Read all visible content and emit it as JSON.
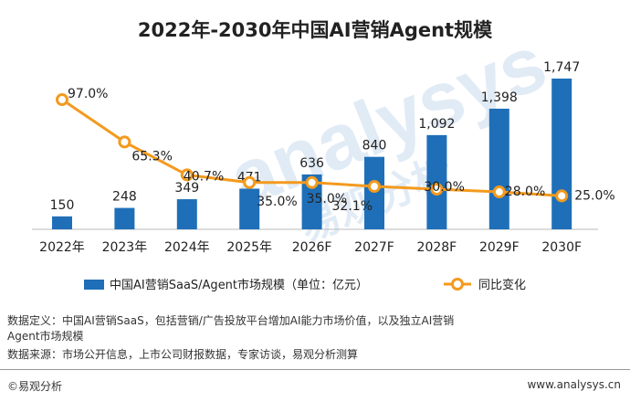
{
  "chart_data": {
    "type": "bar",
    "title": "2022年-2030年中国AI营销Agent规模",
    "categories": [
      "2022年",
      "2023年",
      "2024年",
      "2025年",
      "2026F",
      "2027F",
      "2028F",
      "2029F",
      "2030F"
    ],
    "series": [
      {
        "name": "中国AI营销SaaS/Agent市场规模（单位：亿元）",
        "type": "bar",
        "axis": "left",
        "values": [
          150,
          248,
          349,
          471,
          636,
          840,
          1092,
          1398,
          1747
        ],
        "labels": [
          "150",
          "248",
          "349",
          "471",
          "636",
          "840",
          "1,092",
          "1,398",
          "1,747"
        ],
        "color": "#1f6fb8"
      },
      {
        "name": "同比变化",
        "type": "line",
        "axis": "right",
        "values": [
          97.0,
          65.3,
          40.7,
          35.0,
          35.0,
          32.1,
          30.0,
          28.0,
          25.0
        ],
        "labels": [
          "97.0%",
          "65.3%",
          "40.7%",
          "35.0%",
          "35.0%",
          "32.1%",
          "30.0%",
          "28.0%",
          "25.0%"
        ],
        "color": "#f39a1e"
      }
    ],
    "ylim_left": [
      0,
      1800
    ],
    "ylim_right": [
      0,
      110
    ],
    "grid": false,
    "legend_position": "bottom",
    "watermark": "analysys 易观分析"
  },
  "notes": {
    "definition_line1": "数据定义：中国AI营销SaaS，包括营销/广告投放平台增加AI能力市场价值，以及独立AI营销",
    "definition_line2": "Agent市场规模",
    "source": "数据来源：市场公开信息，上市公司财报数据，专家访谈，易观分析测算"
  },
  "footer": {
    "brand": "©易观分析",
    "url": "www.analysys.cn"
  }
}
